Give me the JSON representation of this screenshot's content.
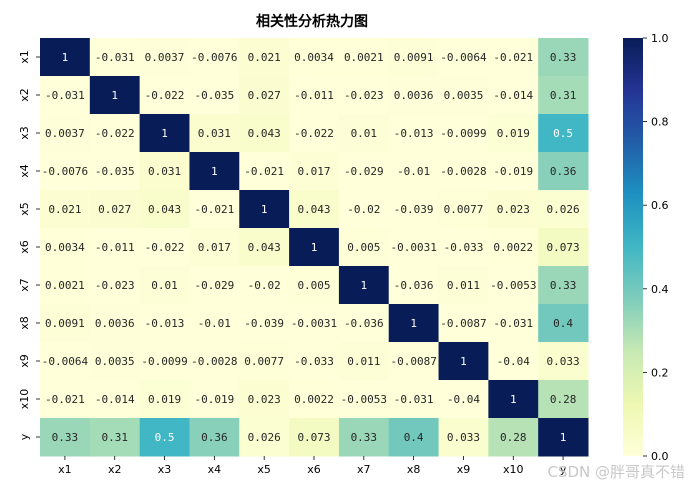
{
  "chart_data": {
    "type": "heatmap",
    "title": "相关性分析热力图",
    "x_labels": [
      "x1",
      "x2",
      "x3",
      "x4",
      "x5",
      "x6",
      "x7",
      "x8",
      "x9",
      "x10",
      "y"
    ],
    "y_labels": [
      "x1",
      "x2",
      "x3",
      "x4",
      "x5",
      "x6",
      "x7",
      "x8",
      "x9",
      "x10",
      "y"
    ],
    "values": [
      [
        1,
        -0.031,
        0.0037,
        -0.0076,
        0.021,
        0.0034,
        0.0021,
        0.0091,
        -0.0064,
        -0.021,
        0.33
      ],
      [
        -0.031,
        1,
        -0.022,
        -0.035,
        0.027,
        -0.011,
        -0.023,
        0.0036,
        0.0035,
        -0.014,
        0.31
      ],
      [
        0.0037,
        -0.022,
        1,
        0.031,
        0.043,
        -0.022,
        0.01,
        -0.013,
        -0.0099,
        0.019,
        0.5
      ],
      [
        -0.0076,
        -0.035,
        0.031,
        1,
        -0.021,
        0.017,
        -0.029,
        -0.01,
        -0.0028,
        -0.019,
        0.36
      ],
      [
        0.021,
        0.027,
        0.043,
        -0.021,
        1,
        0.043,
        -0.02,
        -0.039,
        0.0077,
        0.023,
        0.026
      ],
      [
        0.0034,
        -0.011,
        -0.022,
        0.017,
        0.043,
        1,
        0.005,
        -0.0031,
        -0.033,
        0.0022,
        0.073
      ],
      [
        0.0021,
        -0.023,
        0.01,
        -0.029,
        -0.02,
        0.005,
        1,
        -0.036,
        0.011,
        -0.0053,
        0.33
      ],
      [
        0.0091,
        0.0036,
        -0.013,
        -0.01,
        -0.039,
        -0.0031,
        -0.036,
        1,
        -0.0087,
        -0.031,
        0.4
      ],
      [
        -0.0064,
        0.0035,
        -0.0099,
        -0.0028,
        0.0077,
        -0.033,
        0.011,
        -0.0087,
        1,
        -0.04,
        0.033
      ],
      [
        -0.021,
        -0.014,
        0.019,
        -0.019,
        0.023,
        0.0022,
        -0.0053,
        -0.031,
        -0.04,
        1,
        0.28
      ],
      [
        0.33,
        0.31,
        0.5,
        0.36,
        0.026,
        0.073,
        0.33,
        0.4,
        0.033,
        0.28,
        1
      ]
    ],
    "colorbar": {
      "ticks": [
        "0.0",
        "0.2",
        "0.4",
        "0.6",
        "0.8",
        "1.0"
      ],
      "tick_values": [
        0,
        0.2,
        0.4,
        0.6,
        0.8,
        1.0
      ],
      "range": [
        0,
        1
      ]
    },
    "colormap": "YlGnBu"
  },
  "watermark": "CSDN @胖哥真不错"
}
